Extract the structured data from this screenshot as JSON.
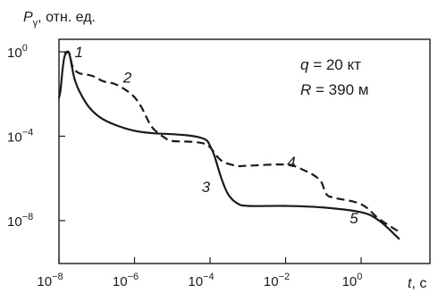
{
  "chart_data": {
    "type": "line",
    "y_axis_label": {
      "symbol": "P",
      "subscript": "γ",
      "units": ", отн. ед."
    },
    "x_axis_label": {
      "symbol": "t",
      "units": ", с"
    },
    "x_scale": "log",
    "y_scale": "log",
    "xlim": [
      1e-08,
      10
    ],
    "ylim": [
      1e-10,
      4
    ],
    "x_ticks": [
      {
        "value": 1e-08,
        "base": "10",
        "exp": "−8"
      },
      {
        "value": 1e-06,
        "base": "10",
        "exp": "−6"
      },
      {
        "value": 0.0001,
        "base": "10",
        "exp": "−4"
      },
      {
        "value": 0.01,
        "base": "10",
        "exp": "−2"
      },
      {
        "value": 1,
        "base": "10",
        "exp": "0"
      }
    ],
    "y_ticks": [
      {
        "value": 1,
        "base": "10",
        "exp": "0"
      },
      {
        "value": 0.0001,
        "base": "10",
        "exp": "−4"
      },
      {
        "value": 1e-08,
        "base": "10",
        "exp": "−8"
      }
    ],
    "params": [
      {
        "symbol": "q",
        "value": " = 20 кт"
      },
      {
        "symbol": "R",
        "value": " = 390 м"
      }
    ],
    "series": [
      {
        "style": "solid",
        "points": [
          [
            1e-08,
            0.0066
          ],
          [
            1.1e-08,
            0.016
          ],
          [
            1.25e-08,
            0.16
          ],
          [
            1.4e-08,
            0.6
          ],
          [
            1.6e-08,
            0.9
          ],
          [
            1.8e-08,
            1.0
          ],
          [
            2e-08,
            0.5
          ],
          [
            2.2e-08,
            0.2
          ],
          [
            2.6e-08,
            0.05
          ],
          [
            3.5e-08,
            0.013
          ],
          [
            6e-08,
            0.0026
          ],
          [
            1.2e-07,
            0.0008
          ],
          [
            3e-07,
            0.00035
          ],
          [
            1e-06,
            0.00018
          ],
          [
            3e-06,
            0.00014
          ],
          [
            1e-05,
            0.000125
          ],
          [
            2.5e-05,
            0.00011
          ],
          [
            5e-05,
            9e-05
          ],
          [
            8e-05,
            6.5e-05
          ],
          [
            0.0001,
            3.5e-05
          ],
          [
            0.00013,
            1.2e-05
          ],
          [
            0.0002,
            1e-06
          ],
          [
            0.0003,
            1.8e-07
          ],
          [
            0.0005,
            7e-08
          ],
          [
            0.001,
            5e-08
          ],
          [
            0.01,
            5e-08
          ],
          [
            0.1,
            4.2e-08
          ],
          [
            1,
            2.5e-08
          ],
          [
            3,
            1e-08
          ],
          [
            10,
            1.4e-09
          ]
        ]
      },
      {
        "style": "dashed",
        "points": [
          [
            1.4e-08,
            0.8
          ],
          [
            1.6e-08,
            1.0
          ],
          [
            1.9e-08,
            0.8
          ],
          [
            2.2e-08,
            0.25
          ],
          [
            2.6e-08,
            0.14
          ],
          [
            3.5e-08,
            0.095
          ],
          [
            5e-08,
            0.085
          ],
          [
            8e-08,
            0.07
          ],
          [
            1.5e-07,
            0.04
          ],
          [
            3e-07,
            0.03
          ],
          [
            6e-07,
            0.015
          ],
          [
            1e-06,
            0.007
          ],
          [
            1.5e-06,
            0.0025
          ],
          [
            2e-06,
            0.0009
          ],
          [
            3e-06,
            0.00025
          ],
          [
            6e-06,
            9e-05
          ],
          [
            1e-05,
            6e-05
          ],
          [
            3e-05,
            5.5e-05
          ],
          [
            7e-05,
            4.5e-05
          ],
          [
            0.0001,
            3e-05
          ],
          [
            0.0002,
            7e-06
          ],
          [
            0.0005,
            4e-06
          ],
          [
            0.001,
            4e-06
          ],
          [
            0.01,
            4.5e-06
          ],
          [
            0.03,
            2.5e-06
          ],
          [
            0.08,
            8.5e-07
          ],
          [
            0.12,
            1.8e-07
          ],
          [
            0.2,
            1.2e-07
          ],
          [
            1,
            6e-08
          ],
          [
            3,
            1.2e-08
          ],
          [
            10,
            3e-09
          ]
        ]
      }
    ],
    "annotations": [
      {
        "label": "1",
        "x": 2.6e-08,
        "y": 0.55
      },
      {
        "label": "2",
        "x": 5e-07,
        "y": 0.035
      },
      {
        "label": "3",
        "x": 6e-05,
        "y": 2.3e-07
      },
      {
        "label": "4",
        "x": 0.011,
        "y": 3.4e-06
      },
      {
        "label": "5",
        "x": 0.5,
        "y": 7.5e-09
      }
    ]
  }
}
